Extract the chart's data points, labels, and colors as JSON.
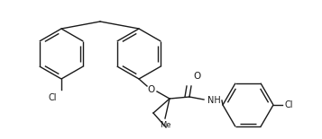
{
  "background": "#ffffff",
  "line_color": "#1a1a1a",
  "line_width": 1.0,
  "figsize": [
    3.57,
    1.55
  ],
  "dpi": 100,
  "xlim": [
    0,
    357
  ],
  "ylim": [
    0,
    155
  ]
}
